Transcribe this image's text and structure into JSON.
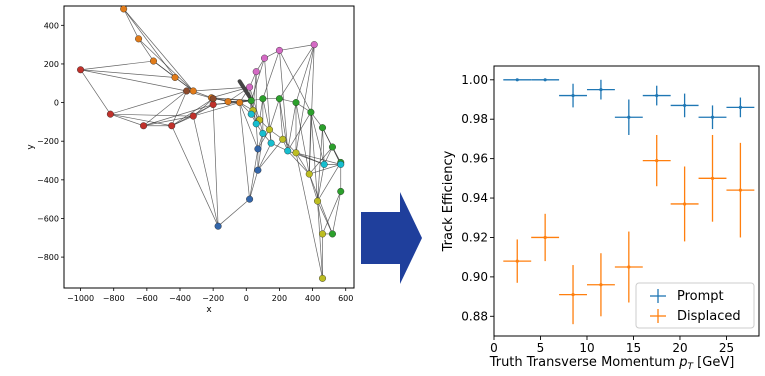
{
  "figure": {
    "arrow_color": "#1f3f9c"
  },
  "chart_data": [
    {
      "type": "scatter",
      "title": "",
      "xlabel": "x",
      "ylabel": "y",
      "xlim": [
        -1100,
        650
      ],
      "ylim": [
        -960,
        500
      ],
      "xticks": [
        -1000,
        -800,
        -600,
        -400,
        -200,
        0,
        200,
        400,
        600
      ],
      "yticks": [
        400,
        200,
        0,
        -200,
        -400,
        -600,
        -800
      ],
      "xtick_labels": [
        "−1000",
        "−800",
        "−600",
        "−400",
        "−200",
        "0",
        "200",
        "400",
        "600"
      ],
      "ytick_labels": [
        "400",
        "200",
        "0",
        "−200",
        "−400",
        "−600",
        "−800"
      ],
      "grid": false,
      "node_colors": {
        "orange": "#e07b1a",
        "red": "#c0312b",
        "brown": "#8c4a2c",
        "green": "#2ca02c",
        "pink": "#d469c4",
        "olive": "#bcbd22",
        "cyan": "#17becf",
        "blue": "#3366aa",
        "edge": "#333333"
      },
      "nodes": [
        {
          "id": 0,
          "x": -740,
          "y": 485,
          "c": "orange"
        },
        {
          "id": 1,
          "x": -650,
          "y": 330,
          "c": "orange"
        },
        {
          "id": 2,
          "x": -560,
          "y": 215,
          "c": "orange"
        },
        {
          "id": 3,
          "x": -430,
          "y": 130,
          "c": "orange"
        },
        {
          "id": 4,
          "x": -320,
          "y": 60,
          "c": "orange"
        },
        {
          "id": 5,
          "x": -210,
          "y": 25,
          "c": "orange"
        },
        {
          "id": 6,
          "x": -110,
          "y": 5,
          "c": "orange"
        },
        {
          "id": 7,
          "x": -40,
          "y": 0,
          "c": "orange"
        },
        {
          "id": 8,
          "x": -1000,
          "y": 170,
          "c": "red"
        },
        {
          "id": 9,
          "x": -820,
          "y": -60,
          "c": "red"
        },
        {
          "id": 10,
          "x": -620,
          "y": -120,
          "c": "red"
        },
        {
          "id": 11,
          "x": -450,
          "y": -120,
          "c": "red"
        },
        {
          "id": 12,
          "x": -320,
          "y": -70,
          "c": "red"
        },
        {
          "id": 13,
          "x": -200,
          "y": -10,
          "c": "red"
        },
        {
          "id": 14,
          "x": -360,
          "y": 60,
          "c": "brown"
        },
        {
          "id": 15,
          "x": -200,
          "y": 20,
          "c": "brown"
        },
        {
          "id": 16,
          "x": 30,
          "y": 10,
          "c": "green"
        },
        {
          "id": 17,
          "x": 100,
          "y": 20,
          "c": "green"
        },
        {
          "id": 18,
          "x": 200,
          "y": 20,
          "c": "green"
        },
        {
          "id": 19,
          "x": 300,
          "y": 0,
          "c": "green"
        },
        {
          "id": 20,
          "x": 390,
          "y": -50,
          "c": "green"
        },
        {
          "id": 21,
          "x": 460,
          "y": -130,
          "c": "green"
        },
        {
          "id": 22,
          "x": 520,
          "y": -230,
          "c": "green"
        },
        {
          "id": 23,
          "x": 570,
          "y": -310,
          "c": "green"
        },
        {
          "id": 24,
          "x": 570,
          "y": -460,
          "c": "green"
        },
        {
          "id": 25,
          "x": 520,
          "y": -680,
          "c": "green"
        },
        {
          "id": 26,
          "x": 20,
          "y": 80,
          "c": "pink"
        },
        {
          "id": 27,
          "x": 60,
          "y": 160,
          "c": "pink"
        },
        {
          "id": 28,
          "x": 110,
          "y": 230,
          "c": "pink"
        },
        {
          "id": 29,
          "x": 200,
          "y": 270,
          "c": "pink"
        },
        {
          "id": 30,
          "x": 410,
          "y": 300,
          "c": "pink"
        },
        {
          "id": 31,
          "x": 40,
          "y": -40,
          "c": "olive"
        },
        {
          "id": 32,
          "x": 80,
          "y": -90,
          "c": "olive"
        },
        {
          "id": 33,
          "x": 140,
          "y": -140,
          "c": "olive"
        },
        {
          "id": 34,
          "x": 220,
          "y": -190,
          "c": "olive"
        },
        {
          "id": 35,
          "x": 300,
          "y": -260,
          "c": "olive"
        },
        {
          "id": 36,
          "x": 380,
          "y": -370,
          "c": "olive"
        },
        {
          "id": 37,
          "x": 430,
          "y": -510,
          "c": "olive"
        },
        {
          "id": 38,
          "x": 460,
          "y": -680,
          "c": "olive"
        },
        {
          "id": 39,
          "x": 460,
          "y": -910,
          "c": "olive"
        },
        {
          "id": 40,
          "x": 30,
          "y": -60,
          "c": "cyan"
        },
        {
          "id": 41,
          "x": 60,
          "y": -110,
          "c": "cyan"
        },
        {
          "id": 42,
          "x": 100,
          "y": -160,
          "c": "cyan"
        },
        {
          "id": 43,
          "x": 150,
          "y": -210,
          "c": "cyan"
        },
        {
          "id": 44,
          "x": 250,
          "y": -250,
          "c": "cyan"
        },
        {
          "id": 45,
          "x": 470,
          "y": -320,
          "c": "cyan"
        },
        {
          "id": 46,
          "x": 570,
          "y": -320,
          "c": "cyan"
        },
        {
          "id": 47,
          "x": 70,
          "y": -240,
          "c": "blue"
        },
        {
          "id": 48,
          "x": 70,
          "y": -350,
          "c": "blue"
        },
        {
          "id": 49,
          "x": 20,
          "y": -500,
          "c": "blue"
        },
        {
          "id": 50,
          "x": -170,
          "y": -640,
          "c": "blue"
        }
      ],
      "edges": [
        [
          0,
          1
        ],
        [
          1,
          2
        ],
        [
          2,
          3
        ],
        [
          3,
          4
        ],
        [
          4,
          5
        ],
        [
          5,
          6
        ],
        [
          6,
          7
        ],
        [
          8,
          9
        ],
        [
          9,
          10
        ],
        [
          10,
          11
        ],
        [
          11,
          12
        ],
        [
          12,
          13
        ],
        [
          13,
          7
        ],
        [
          14,
          15
        ],
        [
          15,
          7
        ],
        [
          14,
          11
        ],
        [
          14,
          10
        ],
        [
          16,
          17
        ],
        [
          17,
          18
        ],
        [
          18,
          19
        ],
        [
          19,
          20
        ],
        [
          20,
          21
        ],
        [
          21,
          22
        ],
        [
          22,
          23
        ],
        [
          23,
          24
        ],
        [
          24,
          25
        ],
        [
          26,
          27
        ],
        [
          27,
          28
        ],
        [
          28,
          29
        ],
        [
          29,
          30
        ],
        [
          31,
          32
        ],
        [
          32,
          33
        ],
        [
          33,
          34
        ],
        [
          34,
          35
        ],
        [
          35,
          36
        ],
        [
          36,
          37
        ],
        [
          37,
          38
        ],
        [
          38,
          39
        ],
        [
          40,
          41
        ],
        [
          41,
          42
        ],
        [
          42,
          43
        ],
        [
          43,
          44
        ],
        [
          44,
          45
        ],
        [
          45,
          46
        ],
        [
          47,
          48
        ],
        [
          48,
          49
        ],
        [
          49,
          50
        ],
        [
          8,
          2
        ],
        [
          8,
          3
        ],
        [
          8,
          14
        ],
        [
          0,
          3
        ],
        [
          0,
          4
        ],
        [
          1,
          4
        ],
        [
          2,
          4
        ],
        [
          9,
          14
        ],
        [
          9,
          11
        ],
        [
          9,
          12
        ],
        [
          10,
          12
        ],
        [
          10,
          13
        ],
        [
          11,
          13
        ],
        [
          12,
          15
        ],
        [
          11,
          15
        ],
        [
          12,
          7
        ],
        [
          13,
          16
        ],
        [
          15,
          16
        ],
        [
          5,
          16
        ],
        [
          6,
          16
        ],
        [
          6,
          26
        ],
        [
          5,
          26
        ],
        [
          4,
          26
        ],
        [
          7,
          16
        ],
        [
          7,
          26
        ],
        [
          7,
          31
        ],
        [
          7,
          40
        ],
        [
          7,
          47
        ],
        [
          7,
          49
        ],
        [
          13,
          50
        ],
        [
          11,
          50
        ],
        [
          12,
          50
        ],
        [
          16,
          31
        ],
        [
          16,
          40
        ],
        [
          17,
          32
        ],
        [
          18,
          33
        ],
        [
          17,
          42
        ],
        [
          18,
          34
        ],
        [
          19,
          35
        ],
        [
          20,
          36
        ],
        [
          19,
          44
        ],
        [
          20,
          44
        ],
        [
          21,
          45
        ],
        [
          22,
          45
        ],
        [
          21,
          46
        ],
        [
          22,
          46
        ],
        [
          23,
          46
        ],
        [
          20,
          37
        ],
        [
          21,
          37
        ],
        [
          26,
          40
        ],
        [
          27,
          31
        ],
        [
          28,
          16
        ],
        [
          29,
          17
        ],
        [
          30,
          18
        ],
        [
          30,
          19
        ],
        [
          30,
          35
        ],
        [
          30,
          36
        ],
        [
          29,
          20
        ],
        [
          27,
          41
        ],
        [
          26,
          32
        ],
        [
          28,
          43
        ],
        [
          29,
          44
        ],
        [
          31,
          41
        ],
        [
          32,
          42
        ],
        [
          33,
          43
        ],
        [
          34,
          44
        ],
        [
          35,
          45
        ],
        [
          35,
          46
        ],
        [
          36,
          46
        ],
        [
          36,
          25
        ],
        [
          37,
          25
        ],
        [
          42,
          47
        ],
        [
          41,
          47
        ],
        [
          43,
          48
        ],
        [
          47,
          49
        ],
        [
          42,
          48
        ],
        [
          35,
          39
        ],
        [
          37,
          39
        ],
        [
          38,
          25
        ],
        [
          24,
          38
        ],
        [
          23,
          37
        ],
        [
          22,
          36
        ],
        [
          45,
          37
        ],
        [
          44,
          36
        ],
        [
          33,
          47
        ],
        [
          34,
          48
        ],
        [
          16,
          41
        ],
        [
          17,
          33
        ],
        [
          18,
          44
        ],
        [
          19,
          36
        ],
        [
          20,
          45
        ]
      ],
      "thick_segment": {
        "x1": -40,
        "y1": 110,
        "x2": 20,
        "y2": 30
      }
    },
    {
      "type": "errorbar",
      "title": "",
      "xlabel": "Truth Transverse Momentum p_T [GeV]",
      "xlabel_main": "Truth Transverse Momentum ",
      "xlabel_symbol": "p",
      "xlabel_sub": "T",
      "xlabel_unit": " [GeV]",
      "ylabel": "Track Efficiency",
      "xlim": [
        0,
        28.5
      ],
      "ylim": [
        0.87,
        1.007
      ],
      "xticks": [
        0,
        5,
        10,
        15,
        20,
        25
      ],
      "yticks": [
        0.88,
        0.9,
        0.92,
        0.94,
        0.96,
        0.98,
        1.0
      ],
      "xtick_labels": [
        "0",
        "5",
        "10",
        "15",
        "20",
        "25"
      ],
      "ytick_labels": [
        "0.88",
        "0.90",
        "0.92",
        "0.94",
        "0.96",
        "0.98",
        "1.00"
      ],
      "legend_position": "bottom-right",
      "series": [
        {
          "name": "Prompt",
          "color": "#1f77b4",
          "points": [
            {
              "x": 2.5,
              "xerr": 1.5,
              "y": 1.0,
              "yerr": 0.0
            },
            {
              "x": 5.5,
              "xerr": 1.5,
              "y": 1.0,
              "yerr": 0.0
            },
            {
              "x": 8.5,
              "xerr": 1.5,
              "y": 0.992,
              "yerr": 0.006
            },
            {
              "x": 11.5,
              "xerr": 1.5,
              "y": 0.995,
              "yerr": 0.005
            },
            {
              "x": 14.5,
              "xerr": 1.5,
              "y": 0.981,
              "yerr": 0.009
            },
            {
              "x": 17.5,
              "xerr": 1.5,
              "y": 0.992,
              "yerr": 0.005
            },
            {
              "x": 20.5,
              "xerr": 1.5,
              "y": 0.987,
              "yerr": 0.006
            },
            {
              "x": 23.5,
              "xerr": 1.5,
              "y": 0.981,
              "yerr": 0.006
            },
            {
              "x": 26.5,
              "xerr": 1.5,
              "y": 0.986,
              "yerr": 0.005
            }
          ]
        },
        {
          "name": "Displaced",
          "color": "#ff7f0e",
          "points": [
            {
              "x": 2.5,
              "xerr": 1.5,
              "y": 0.908,
              "yerr": 0.011
            },
            {
              "x": 5.5,
              "xerr": 1.5,
              "y": 0.92,
              "yerr": 0.012
            },
            {
              "x": 8.5,
              "xerr": 1.5,
              "y": 0.891,
              "yerr": 0.015
            },
            {
              "x": 11.5,
              "xerr": 1.5,
              "y": 0.896,
              "yerr": 0.016
            },
            {
              "x": 14.5,
              "xerr": 1.5,
              "y": 0.905,
              "yerr": 0.018
            },
            {
              "x": 17.5,
              "xerr": 1.5,
              "y": 0.959,
              "yerr": 0.013
            },
            {
              "x": 20.5,
              "xerr": 1.5,
              "y": 0.937,
              "yerr": 0.019
            },
            {
              "x": 23.5,
              "xerr": 1.5,
              "y": 0.95,
              "yerr": 0.022
            },
            {
              "x": 26.5,
              "xerr": 1.5,
              "y": 0.944,
              "yerr": 0.024
            }
          ]
        }
      ]
    }
  ]
}
